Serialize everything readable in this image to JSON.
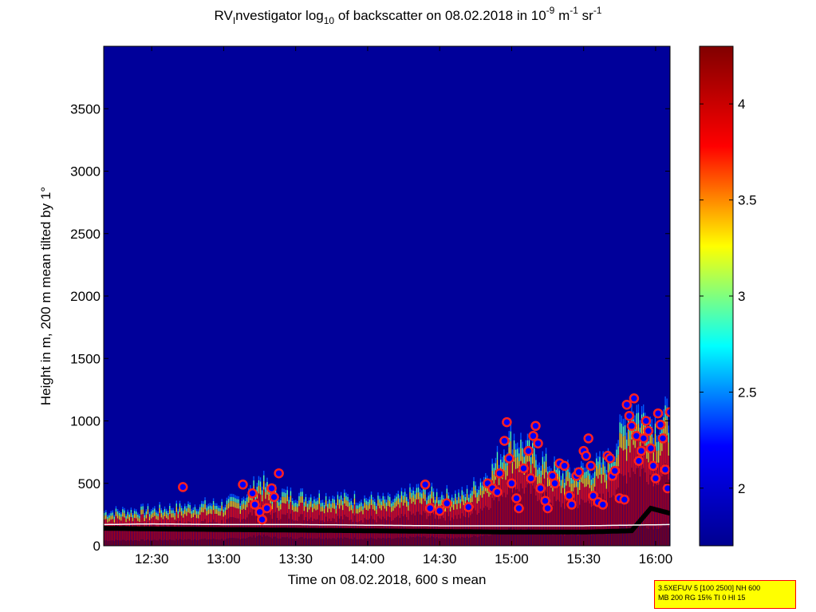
{
  "title": {
    "prefix": "RV",
    "sub_i": "I",
    "after_i": "nvestigator log",
    "sub_10": "10",
    "after_log": " of backscatter on 08.02.2018 in 10",
    "exp1": "-9",
    "unit_m": " m",
    "exp2": "-1",
    "unit_sr": " sr",
    "exp3": "-1"
  },
  "info_box": {
    "line1": "3.5XEFUV 5 [100 2500] NH 600",
    "line2": "MB 200 RG 15% TI 0 HI 15"
  },
  "chart_data": {
    "type": "heatmap",
    "xlabel": "Time on 08.02.2018, 600 s mean",
    "ylabel": "Height in m, 200 m mean tilted by 1°",
    "xlim": [
      "12:10",
      "16:06"
    ],
    "ylim": [
      0,
      4000
    ],
    "x_ticks": [
      "12:30",
      "13:00",
      "13:30",
      "14:00",
      "14:30",
      "15:00",
      "15:30",
      "16:00"
    ],
    "y_ticks": [
      0,
      500,
      1000,
      1500,
      2000,
      2500,
      3000,
      3500
    ],
    "colorbar": {
      "min": 1.7,
      "max": 4.3,
      "ticks": [
        "2",
        "2.5",
        "3",
        "3.5",
        "4"
      ]
    },
    "background_value": 1.75,
    "colormap": [
      "#00008f",
      "#0000ff",
      "#00ffff",
      "#ffff00",
      "#ff0000",
      "#800000"
    ],
    "colors": {
      "marker_face": "#0000ff",
      "marker_edge": "#ff2020",
      "layer_line": "#ffffff",
      "aerosol_base": "#000000"
    },
    "aerosol_layer_top_m": [
      [
        "12:10",
        280
      ],
      [
        "12:20",
        290
      ],
      [
        "12:30",
        300
      ],
      [
        "12:40",
        320
      ],
      [
        "12:50",
        340
      ],
      [
        "13:00",
        350
      ],
      [
        "13:05",
        380
      ],
      [
        "13:10",
        430
      ],
      [
        "13:15",
        560
      ],
      [
        "13:20",
        440
      ],
      [
        "13:30",
        420
      ],
      [
        "13:40",
        410
      ],
      [
        "13:50",
        400
      ],
      [
        "14:00",
        390
      ],
      [
        "14:10",
        370
      ],
      [
        "14:20",
        460
      ],
      [
        "14:30",
        430
      ],
      [
        "14:40",
        420
      ],
      [
        "14:50",
        600
      ],
      [
        "15:00",
        900
      ],
      [
        "15:10",
        750
      ],
      [
        "15:20",
        600
      ],
      [
        "15:30",
        620
      ],
      [
        "15:40",
        700
      ],
      [
        "15:50",
        1150
      ],
      [
        "16:00",
        1000
      ],
      [
        "16:06",
        1080
      ]
    ],
    "mixed_layer_line_m": [
      [
        "12:10",
        170
      ],
      [
        "12:30",
        175
      ],
      [
        "13:00",
        170
      ],
      [
        "13:30",
        170
      ],
      [
        "14:00",
        165
      ],
      [
        "14:30",
        160
      ],
      [
        "15:00",
        160
      ],
      [
        "15:30",
        160
      ],
      [
        "16:06",
        170
      ]
    ],
    "aerosol_base_m": [
      [
        "12:10",
        140
      ],
      [
        "12:30",
        135
      ],
      [
        "13:00",
        130
      ],
      [
        "13:30",
        125
      ],
      [
        "14:00",
        120
      ],
      [
        "14:30",
        115
      ],
      [
        "15:00",
        110
      ],
      [
        "15:30",
        110
      ],
      [
        "15:50",
        120
      ],
      [
        "15:58",
        300
      ],
      [
        "16:06",
        260
      ]
    ],
    "cloud_markers": [
      [
        "12:43",
        470
      ],
      [
        "13:08",
        490
      ],
      [
        "13:12",
        420
      ],
      [
        "13:13",
        330
      ],
      [
        "13:15",
        270
      ],
      [
        "13:16",
        210
      ],
      [
        "13:18",
        300
      ],
      [
        "13:20",
        460
      ],
      [
        "13:21",
        390
      ],
      [
        "13:23",
        580
      ],
      [
        "14:24",
        490
      ],
      [
        "14:26",
        300
      ],
      [
        "14:30",
        280
      ],
      [
        "14:33",
        340
      ],
      [
        "14:42",
        310
      ],
      [
        "14:50",
        500
      ],
      [
        "14:52",
        460
      ],
      [
        "14:54",
        430
      ],
      [
        "14:55",
        580
      ],
      [
        "14:57",
        840
      ],
      [
        "14:58",
        990
      ],
      [
        "14:59",
        700
      ],
      [
        "15:00",
        500
      ],
      [
        "15:02",
        380
      ],
      [
        "15:03",
        300
      ],
      [
        "15:05",
        620
      ],
      [
        "15:07",
        760
      ],
      [
        "15:08",
        540
      ],
      [
        "15:09",
        880
      ],
      [
        "15:10",
        960
      ],
      [
        "15:11",
        820
      ],
      [
        "15:12",
        460
      ],
      [
        "15:14",
        360
      ],
      [
        "15:15",
        300
      ],
      [
        "15:17",
        560
      ],
      [
        "15:18",
        500
      ],
      [
        "15:20",
        660
      ],
      [
        "15:22",
        640
      ],
      [
        "15:24",
        400
      ],
      [
        "15:25",
        330
      ],
      [
        "15:27",
        560
      ],
      [
        "15:28",
        590
      ],
      [
        "15:30",
        760
      ],
      [
        "15:31",
        720
      ],
      [
        "15:32",
        860
      ],
      [
        "15:33",
        640
      ],
      [
        "15:34",
        400
      ],
      [
        "15:36",
        350
      ],
      [
        "15:38",
        330
      ],
      [
        "15:40",
        720
      ],
      [
        "15:41",
        700
      ],
      [
        "15:42",
        560
      ],
      [
        "15:43",
        600
      ],
      [
        "15:45",
        380
      ],
      [
        "15:47",
        370
      ],
      [
        "15:48",
        1130
      ],
      [
        "15:49",
        1040
      ],
      [
        "15:50",
        960
      ],
      [
        "15:51",
        1180
      ],
      [
        "15:52",
        880
      ],
      [
        "15:53",
        680
      ],
      [
        "15:54",
        760
      ],
      [
        "15:55",
        860
      ],
      [
        "15:56",
        1000
      ],
      [
        "15:57",
        920
      ],
      [
        "15:58",
        780
      ],
      [
        "15:59",
        640
      ],
      [
        "16:00",
        540
      ],
      [
        "16:01",
        1060
      ],
      [
        "16:02",
        970
      ],
      [
        "16:03",
        860
      ],
      [
        "16:04",
        610
      ],
      [
        "16:05",
        460
      ],
      [
        "16:06",
        1070
      ]
    ],
    "grid": false,
    "legend": "none"
  }
}
